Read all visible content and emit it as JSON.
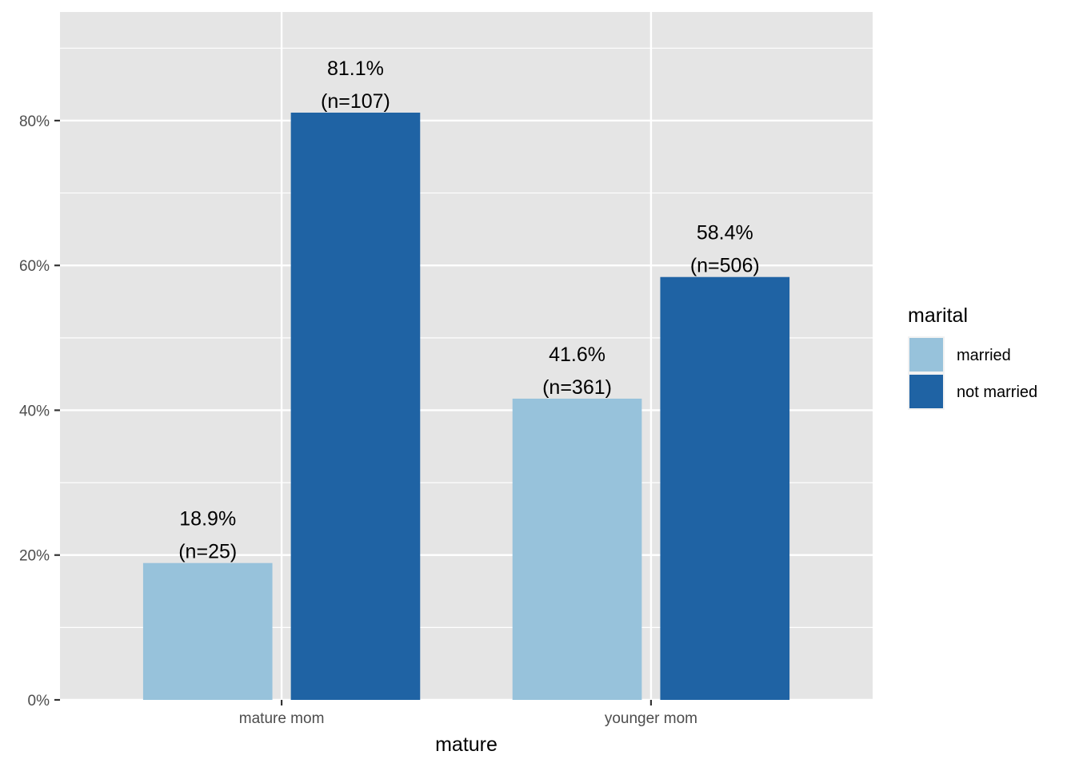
{
  "chart_data": {
    "type": "bar",
    "categories": [
      "mature mom",
      "younger mom"
    ],
    "series": [
      {
        "name": "married",
        "values": [
          18.9,
          41.6
        ],
        "labels": [
          "18.9%",
          "41.6%"
        ],
        "counts": [
          "(n=25)",
          "(n=361)"
        ]
      },
      {
        "name": "not married",
        "values": [
          81.1,
          58.4
        ],
        "labels": [
          "81.1%",
          "58.4%"
        ],
        "counts": [
          "(n=107)",
          "(n=506)"
        ]
      }
    ],
    "xlabel": "mature",
    "ylabel": "",
    "ylim": [
      0,
      95
    ],
    "y_ticks": [
      0,
      20,
      40,
      60,
      80
    ],
    "y_tick_labels": [
      "0%",
      "20%",
      "40%",
      "60%",
      "80%"
    ],
    "legend": {
      "title": "marital",
      "position": "right"
    },
    "grid": true,
    "colors": {
      "married": "#97c2db",
      "not married": "#1f63a4",
      "panel": "#e5e5e5",
      "gridline": "#ffffff"
    }
  }
}
